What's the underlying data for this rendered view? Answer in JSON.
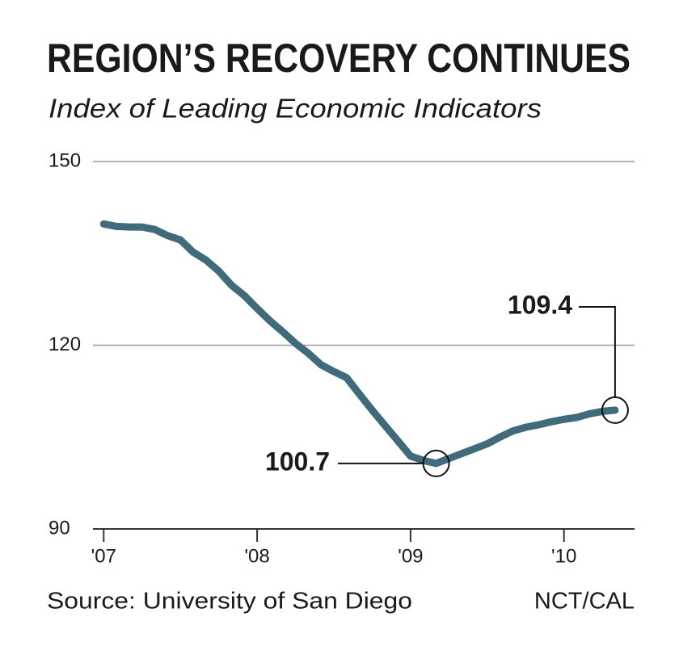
{
  "chart_data": {
    "type": "line",
    "title": "REGION’S RECOVERY CONTINUES",
    "subtitle": "Index of Leading Economic Indicators",
    "source": "Source: University of San Diego",
    "credit": "NCT/CAL",
    "x": [
      2007,
      2007.083,
      2007.167,
      2007.25,
      2007.333,
      2007.417,
      2007.5,
      2007.583,
      2007.667,
      2007.75,
      2007.833,
      2007.917,
      2008,
      2008.083,
      2008.167,
      2008.25,
      2008.333,
      2008.417,
      2008.5,
      2008.583,
      2008.667,
      2008.75,
      2008.833,
      2008.917,
      2009,
      2009.083,
      2009.167,
      2009.25,
      2009.333,
      2009.417,
      2009.5,
      2009.583,
      2009.667,
      2009.75,
      2009.833,
      2009.917,
      2010,
      2010.083,
      2010.167,
      2010.25,
      2010.333
    ],
    "series": [
      {
        "name": "Index of Leading Economic Indicators",
        "color": "#3f6b7a",
        "values": [
          139.8,
          139.4,
          139.3,
          139.3,
          138.9,
          137.9,
          137.2,
          135.2,
          133.9,
          132.1,
          129.8,
          128.1,
          126.0,
          124.0,
          122.2,
          120.3,
          118.7,
          116.8,
          115.7,
          114.7,
          112.0,
          109.4,
          106.9,
          104.4,
          101.9,
          101.2,
          100.7,
          101.5,
          102.3,
          103.1,
          103.9,
          105.0,
          106.0,
          106.6,
          107.0,
          107.5,
          107.9,
          108.2,
          108.8,
          109.2,
          109.4
        ]
      }
    ],
    "annotations": [
      {
        "x": 2009.167,
        "y": 100.7
      },
      {
        "x": 2010.333,
        "y": 109.4
      }
    ],
    "xlim": [
      2006.93,
      2010.46
    ],
    "xticks": [
      {
        "value": 2007,
        "label": "'07"
      },
      {
        "value": 2008,
        "label": "'08"
      },
      {
        "value": 2009,
        "label": "'09"
      },
      {
        "value": 2010,
        "label": "'10"
      }
    ],
    "ylim": [
      90,
      150
    ],
    "yticks": [
      90,
      120,
      150
    ],
    "grid": true
  }
}
